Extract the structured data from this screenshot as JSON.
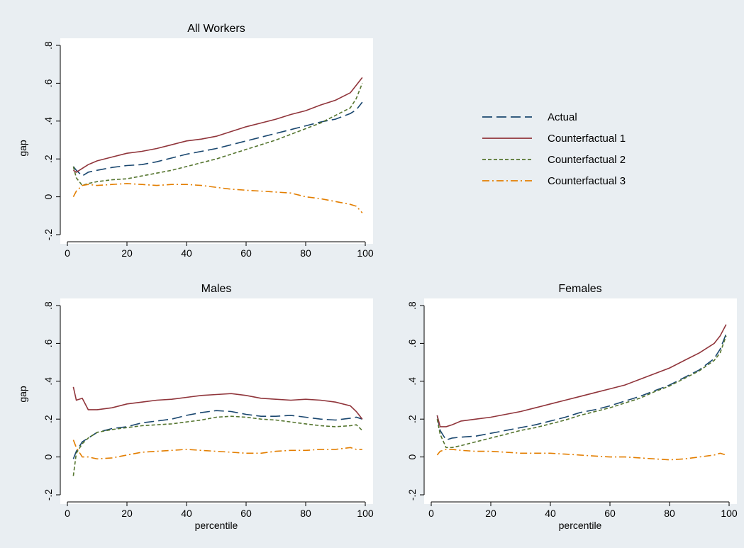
{
  "chart_data": [
    {
      "type": "line",
      "title": "All Workers",
      "xlabel": "",
      "ylabel": "gap",
      "xlim": [
        0,
        100
      ],
      "ylim": [
        -0.2,
        0.8
      ],
      "xticks": [
        "0",
        "20",
        "40",
        "60",
        "80",
        "100"
      ],
      "yticks": [
        "-.2",
        "0",
        ".2",
        ".4",
        ".6",
        ".8"
      ],
      "grid": false,
      "series": [
        {
          "name": "Actual",
          "x": [
            2,
            3,
            5,
            7,
            10,
            15,
            20,
            25,
            30,
            35,
            40,
            45,
            50,
            55,
            60,
            65,
            70,
            75,
            80,
            85,
            90,
            95,
            97,
            99
          ],
          "values": [
            0.16,
            0.14,
            0.11,
            0.13,
            0.14,
            0.155,
            0.165,
            0.17,
            0.185,
            0.205,
            0.225,
            0.24,
            0.255,
            0.275,
            0.295,
            0.315,
            0.335,
            0.355,
            0.375,
            0.395,
            0.41,
            0.44,
            0.46,
            0.5
          ]
        },
        {
          "name": "Counterfactual 1",
          "x": [
            2,
            3,
            5,
            7,
            10,
            15,
            20,
            25,
            30,
            35,
            40,
            45,
            50,
            55,
            60,
            65,
            70,
            75,
            80,
            85,
            90,
            95,
            97,
            99
          ],
          "values": [
            0.14,
            0.13,
            0.15,
            0.17,
            0.19,
            0.21,
            0.23,
            0.24,
            0.255,
            0.275,
            0.295,
            0.305,
            0.32,
            0.345,
            0.37,
            0.39,
            0.41,
            0.435,
            0.455,
            0.485,
            0.51,
            0.55,
            0.59,
            0.63
          ]
        },
        {
          "name": "Counterfactual 2",
          "x": [
            2,
            3,
            5,
            7,
            10,
            15,
            20,
            25,
            30,
            35,
            40,
            45,
            50,
            55,
            60,
            65,
            70,
            75,
            80,
            85,
            90,
            95,
            97,
            99
          ],
          "values": [
            0.16,
            0.1,
            0.06,
            0.07,
            0.08,
            0.09,
            0.095,
            0.11,
            0.125,
            0.14,
            0.16,
            0.18,
            0.2,
            0.225,
            0.25,
            0.275,
            0.3,
            0.33,
            0.36,
            0.39,
            0.43,
            0.47,
            0.52,
            0.6
          ]
        },
        {
          "name": "Counterfactual 3",
          "x": [
            2,
            3,
            5,
            7,
            10,
            15,
            20,
            25,
            30,
            35,
            40,
            45,
            50,
            55,
            60,
            65,
            70,
            75,
            80,
            85,
            90,
            95,
            97,
            99
          ],
          "values": [
            0.0,
            0.03,
            0.06,
            0.065,
            0.06,
            0.065,
            0.07,
            0.065,
            0.06,
            0.065,
            0.065,
            0.06,
            0.05,
            0.04,
            0.035,
            0.03,
            0.025,
            0.02,
            0.0,
            -0.01,
            -0.025,
            -0.04,
            -0.05,
            -0.085
          ]
        }
      ]
    },
    {
      "type": "line",
      "title": "Males",
      "xlabel": "percentile",
      "ylabel": "gap",
      "xlim": [
        0,
        100
      ],
      "ylim": [
        -0.2,
        0.8
      ],
      "xticks": [
        "0",
        "20",
        "40",
        "60",
        "80",
        "100"
      ],
      "yticks": [
        "-.2",
        "0",
        ".2",
        ".4",
        ".6",
        ".8"
      ],
      "grid": false,
      "series": [
        {
          "name": "Actual",
          "x": [
            2,
            3,
            5,
            7,
            10,
            15,
            20,
            25,
            30,
            35,
            40,
            45,
            50,
            55,
            60,
            65,
            70,
            75,
            80,
            85,
            90,
            95,
            97,
            99
          ],
          "values": [
            -0.01,
            0.03,
            0.08,
            0.1,
            0.13,
            0.15,
            0.16,
            0.18,
            0.19,
            0.2,
            0.22,
            0.235,
            0.245,
            0.24,
            0.225,
            0.215,
            0.215,
            0.22,
            0.21,
            0.2,
            0.195,
            0.205,
            0.21,
            0.2
          ]
        },
        {
          "name": "Counterfactual 1",
          "x": [
            2,
            3,
            5,
            7,
            10,
            15,
            20,
            25,
            30,
            35,
            40,
            45,
            50,
            55,
            60,
            65,
            70,
            75,
            80,
            85,
            90,
            95,
            97,
            99
          ],
          "values": [
            0.37,
            0.3,
            0.31,
            0.25,
            0.25,
            0.26,
            0.28,
            0.29,
            0.3,
            0.305,
            0.315,
            0.325,
            0.33,
            0.335,
            0.325,
            0.31,
            0.305,
            0.3,
            0.305,
            0.3,
            0.29,
            0.27,
            0.24,
            0.2
          ]
        },
        {
          "name": "Counterfactual 2",
          "x": [
            2,
            3,
            5,
            7,
            10,
            15,
            20,
            25,
            30,
            35,
            40,
            45,
            50,
            55,
            60,
            65,
            70,
            75,
            80,
            85,
            90,
            95,
            97,
            99
          ],
          "values": [
            -0.1,
            0.02,
            0.07,
            0.1,
            0.13,
            0.145,
            0.155,
            0.165,
            0.17,
            0.175,
            0.185,
            0.195,
            0.21,
            0.215,
            0.21,
            0.2,
            0.195,
            0.185,
            0.175,
            0.165,
            0.16,
            0.165,
            0.17,
            0.14
          ]
        },
        {
          "name": "Counterfactual 3",
          "x": [
            2,
            3,
            5,
            7,
            10,
            15,
            20,
            25,
            30,
            35,
            40,
            45,
            50,
            55,
            60,
            65,
            70,
            75,
            80,
            85,
            90,
            95,
            97,
            99
          ],
          "values": [
            0.09,
            0.05,
            0.0,
            0.0,
            -0.01,
            -0.005,
            0.01,
            0.025,
            0.03,
            0.035,
            0.04,
            0.035,
            0.03,
            0.025,
            0.02,
            0.02,
            0.03,
            0.035,
            0.035,
            0.04,
            0.04,
            0.05,
            0.04,
            0.04
          ]
        }
      ]
    },
    {
      "type": "line",
      "title": "Females",
      "xlabel": "percentile",
      "ylabel": "",
      "xlim": [
        0,
        100
      ],
      "ylim": [
        -0.2,
        0.8
      ],
      "xticks": [
        "0",
        "20",
        "40",
        "60",
        "80",
        "100"
      ],
      "yticks": [
        "-.2",
        "0",
        ".2",
        ".4",
        ".6",
        ".8"
      ],
      "grid": false,
      "series": [
        {
          "name": "Actual",
          "x": [
            2,
            3,
            5,
            7,
            10,
            15,
            20,
            25,
            30,
            35,
            40,
            45,
            50,
            55,
            60,
            65,
            70,
            75,
            80,
            85,
            90,
            95,
            97,
            99
          ],
          "values": [
            0.22,
            0.14,
            0.09,
            0.1,
            0.105,
            0.11,
            0.125,
            0.14,
            0.155,
            0.17,
            0.19,
            0.21,
            0.235,
            0.25,
            0.27,
            0.295,
            0.32,
            0.35,
            0.38,
            0.42,
            0.46,
            0.52,
            0.57,
            0.65
          ]
        },
        {
          "name": "Counterfactual 1",
          "x": [
            2,
            3,
            5,
            7,
            10,
            15,
            20,
            25,
            30,
            35,
            40,
            45,
            50,
            55,
            60,
            65,
            70,
            75,
            80,
            85,
            90,
            95,
            97,
            99
          ],
          "values": [
            0.22,
            0.16,
            0.16,
            0.17,
            0.19,
            0.2,
            0.21,
            0.225,
            0.24,
            0.26,
            0.28,
            0.3,
            0.32,
            0.34,
            0.36,
            0.38,
            0.41,
            0.44,
            0.47,
            0.51,
            0.55,
            0.6,
            0.64,
            0.7
          ]
        },
        {
          "name": "Counterfactual 2",
          "x": [
            2,
            3,
            5,
            7,
            10,
            15,
            20,
            25,
            30,
            35,
            40,
            45,
            50,
            55,
            60,
            65,
            70,
            75,
            80,
            85,
            90,
            95,
            97,
            99
          ],
          "values": [
            0.2,
            0.12,
            0.05,
            0.05,
            0.06,
            0.08,
            0.1,
            0.12,
            0.14,
            0.155,
            0.175,
            0.195,
            0.22,
            0.24,
            0.26,
            0.285,
            0.31,
            0.345,
            0.375,
            0.415,
            0.455,
            0.51,
            0.55,
            0.64
          ]
        },
        {
          "name": "Counterfactual 3",
          "x": [
            2,
            3,
            5,
            7,
            10,
            15,
            20,
            25,
            30,
            35,
            40,
            45,
            50,
            55,
            60,
            65,
            70,
            75,
            80,
            85,
            90,
            95,
            97,
            99
          ],
          "values": [
            0.01,
            0.03,
            0.04,
            0.04,
            0.035,
            0.03,
            0.03,
            0.025,
            0.02,
            0.02,
            0.02,
            0.015,
            0.01,
            0.005,
            0.0,
            0.0,
            -0.005,
            -0.01,
            -0.015,
            -0.01,
            0.0,
            0.01,
            0.02,
            0.01
          ]
        }
      ]
    }
  ],
  "legend": {
    "placement": "right",
    "items": [
      {
        "label": "Actual",
        "color": "#1a476f",
        "dash": "long-dash"
      },
      {
        "label": "Counterfactual 1",
        "color": "#90353b",
        "dash": "solid"
      },
      {
        "label": "Counterfactual 2",
        "color": "#55752f",
        "dash": "short-dash"
      },
      {
        "label": "Counterfactual 3",
        "color": "#e37e00",
        "dash": "dash-dot"
      }
    ]
  }
}
